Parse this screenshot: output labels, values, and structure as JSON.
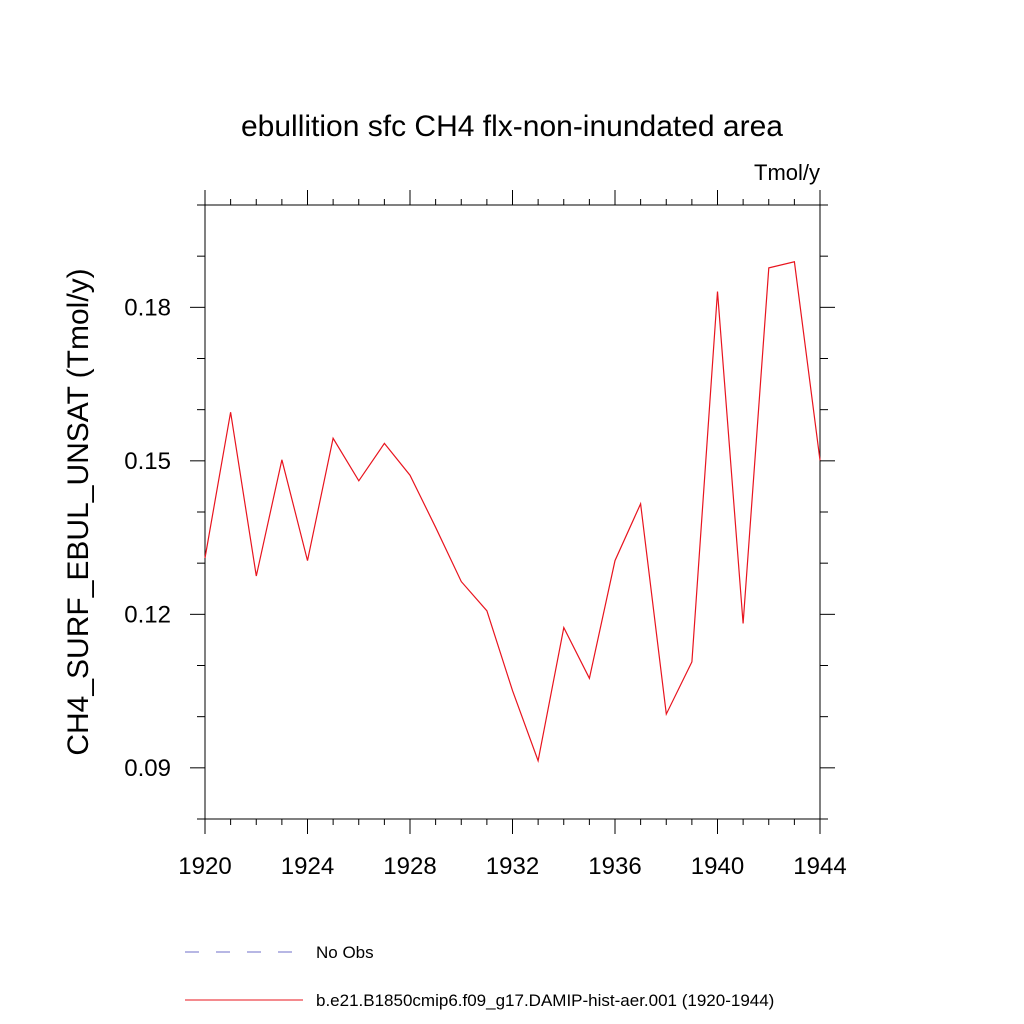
{
  "chart_data": {
    "type": "line",
    "title": "ebullition sfc CH4 flx-non-inundated area",
    "units": "Tmol/y",
    "xlabel": "",
    "ylabel": "CH4_SURF_EBUL_UNSAT  (Tmol/y)",
    "xlim": [
      1920,
      1944
    ],
    "ylim": [
      0.08,
      0.2
    ],
    "xticks": [
      1920,
      1924,
      1928,
      1932,
      1936,
      1940,
      1944
    ],
    "xtick_labels": [
      "1920",
      "1924",
      "1928",
      "1932",
      "1936",
      "1940",
      "1944"
    ],
    "yticks": [
      0.09,
      0.12,
      0.15,
      0.18
    ],
    "ytick_labels": [
      "0.09",
      "0.12",
      "0.15",
      "0.18"
    ],
    "x": [
      1920,
      1921,
      1922,
      1923,
      1924,
      1925,
      1926,
      1927,
      1928,
      1929,
      1930,
      1931,
      1932,
      1933,
      1934,
      1935,
      1936,
      1937,
      1938,
      1939,
      1940,
      1941,
      1942,
      1943,
      1944
    ],
    "series": [
      {
        "name": "b.e21.B1850cmip6.f09_g17.DAMIP-hist-aer.001 (1920-1944)",
        "color": "#e8141e",
        "values": [
          0.131,
          0.1595,
          0.1275,
          0.1502,
          0.1305,
          0.1544,
          0.1461,
          0.1534,
          0.1472,
          0.137,
          0.1264,
          0.1207,
          0.1051,
          0.0914,
          0.1174,
          0.1075,
          0.1305,
          0.1416,
          0.1005,
          0.1107,
          0.1831,
          0.1182,
          0.1877,
          0.1889,
          0.1501
        ]
      }
    ],
    "legend": [
      {
        "label": "No Obs",
        "style": "dashed",
        "color": "#6f6fc8"
      },
      {
        "label": "b.e21.B1850cmip6.f09_g17.DAMIP-hist-aer.001 (1920-1944)",
        "style": "solid",
        "color": "#e8141e"
      }
    ],
    "legend_placement": "bottom",
    "grid": false
  }
}
